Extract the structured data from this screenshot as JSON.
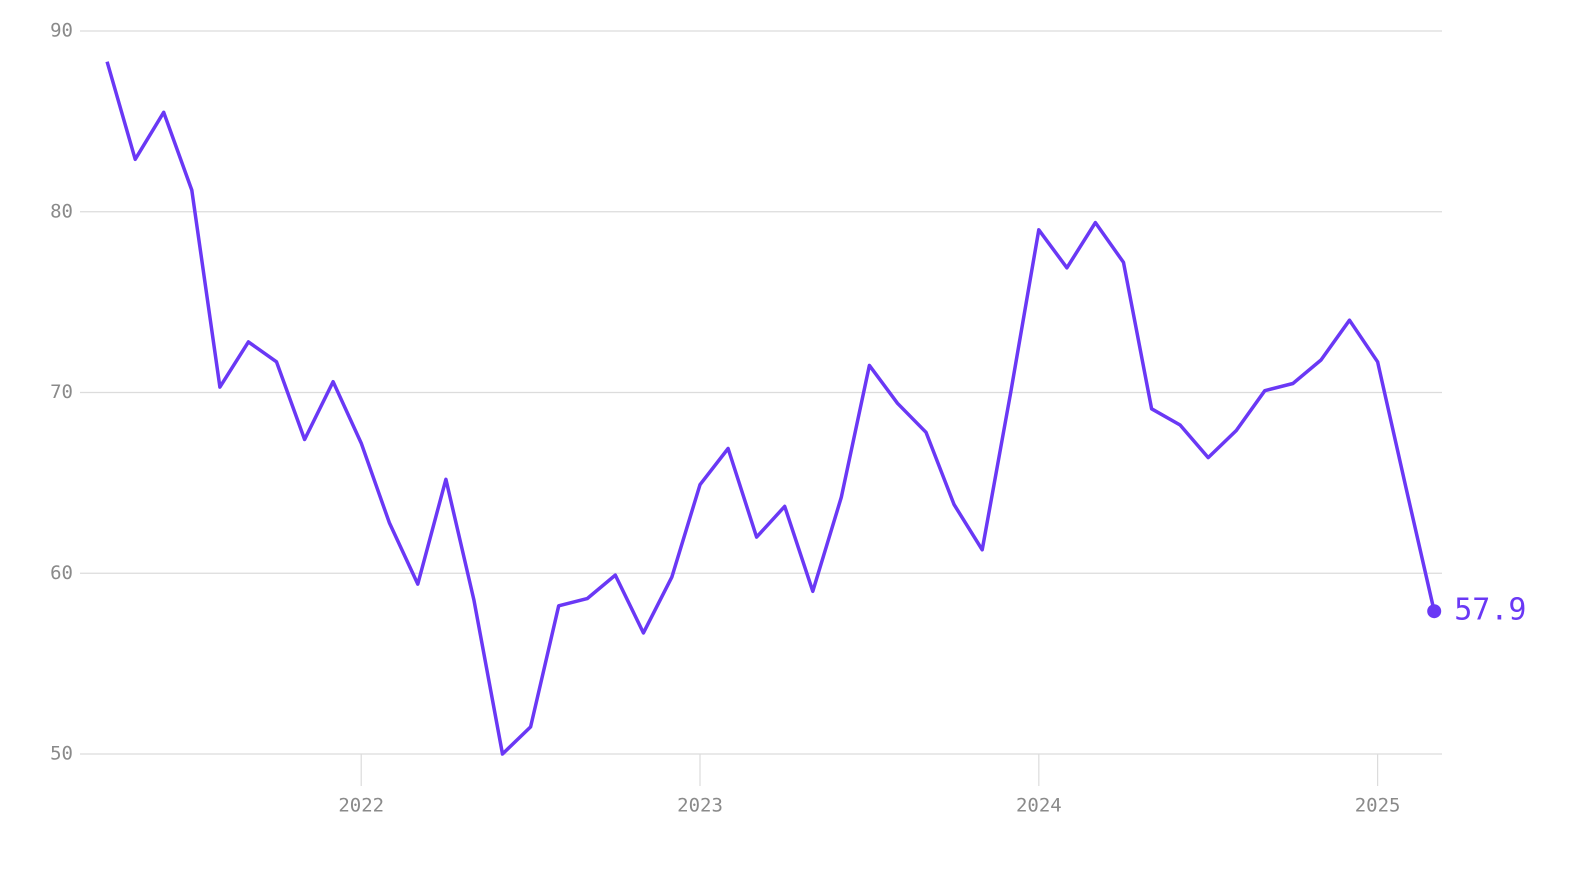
{
  "chart_data": {
    "type": "line",
    "x": [
      2021.25,
      2021.333,
      2021.417,
      2021.5,
      2021.583,
      2021.667,
      2021.75,
      2021.833,
      2021.917,
      2022,
      2022.083,
      2022.167,
      2022.25,
      2022.333,
      2022.417,
      2022.5,
      2022.583,
      2022.667,
      2022.75,
      2022.833,
      2022.917,
      2023,
      2023.083,
      2023.167,
      2023.25,
      2023.333,
      2023.417,
      2023.5,
      2023.583,
      2023.667,
      2023.75,
      2023.833,
      2023.917,
      2024,
      2024.083,
      2024.167,
      2024.25,
      2024.333,
      2024.417,
      2024.5,
      2024.583,
      2024.667,
      2024.75,
      2024.833,
      2024.917,
      2025,
      2025.083,
      2025.167
    ],
    "values": [
      88.3,
      82.9,
      85.5,
      81.2,
      70.3,
      72.8,
      71.7,
      67.4,
      70.6,
      67.2,
      62.8,
      59.4,
      65.2,
      58.5,
      50.0,
      51.5,
      58.2,
      58.6,
      59.9,
      56.7,
      59.8,
      64.9,
      66.9,
      62.0,
      63.7,
      59.0,
      64.2,
      71.5,
      69.4,
      67.8,
      63.8,
      61.3,
      70.0,
      79.0,
      76.9,
      79.4,
      77.2,
      69.1,
      68.2,
      66.4,
      67.9,
      70.1,
      70.5,
      71.8,
      74.0,
      71.7,
      64.8,
      57.9
    ],
    "color": "#6a38f5",
    "xlim": [
      2021.17,
      2025.19
    ],
    "xticks": [
      2022,
      2023,
      2024,
      2025
    ],
    "ylim": [
      50,
      90
    ],
    "yticks": [
      50,
      60,
      70,
      80,
      90
    ],
    "grid": true
  }
}
